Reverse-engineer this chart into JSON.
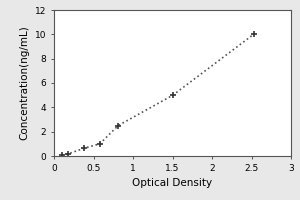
{
  "x_data": [
    0.097,
    0.172,
    0.374,
    0.58,
    0.812,
    1.505,
    2.527
  ],
  "y_data": [
    0.078,
    0.156,
    0.625,
    1.0,
    2.5,
    5.0,
    10.0
  ],
  "xlabel": "Optical Density",
  "ylabel": "Concentration(ng/mL)",
  "xlim": [
    0,
    3
  ],
  "ylim": [
    0,
    12
  ],
  "xticks": [
    0,
    0.5,
    1,
    1.5,
    2,
    2.5,
    3
  ],
  "yticks": [
    0,
    2,
    4,
    6,
    8,
    10,
    12
  ],
  "xtick_labels": [
    "0",
    "0.5",
    "1",
    "1.5",
    "2",
    "2.5",
    "3"
  ],
  "ytick_labels": [
    "0",
    "2",
    "4",
    "6",
    "8",
    "10",
    "12"
  ],
  "line_color": "#555555",
  "marker_color": "#333333",
  "marker": "+",
  "linestyle": "dotted",
  "linewidth": 1.2,
  "markersize": 5,
  "markeredgewidth": 1.2,
  "fig_bg_color": "#e8e8e8",
  "plot_bg_color": "#ffffff",
  "font_size_label": 7.5,
  "font_size_tick": 6.5,
  "spine_color": "#555555"
}
